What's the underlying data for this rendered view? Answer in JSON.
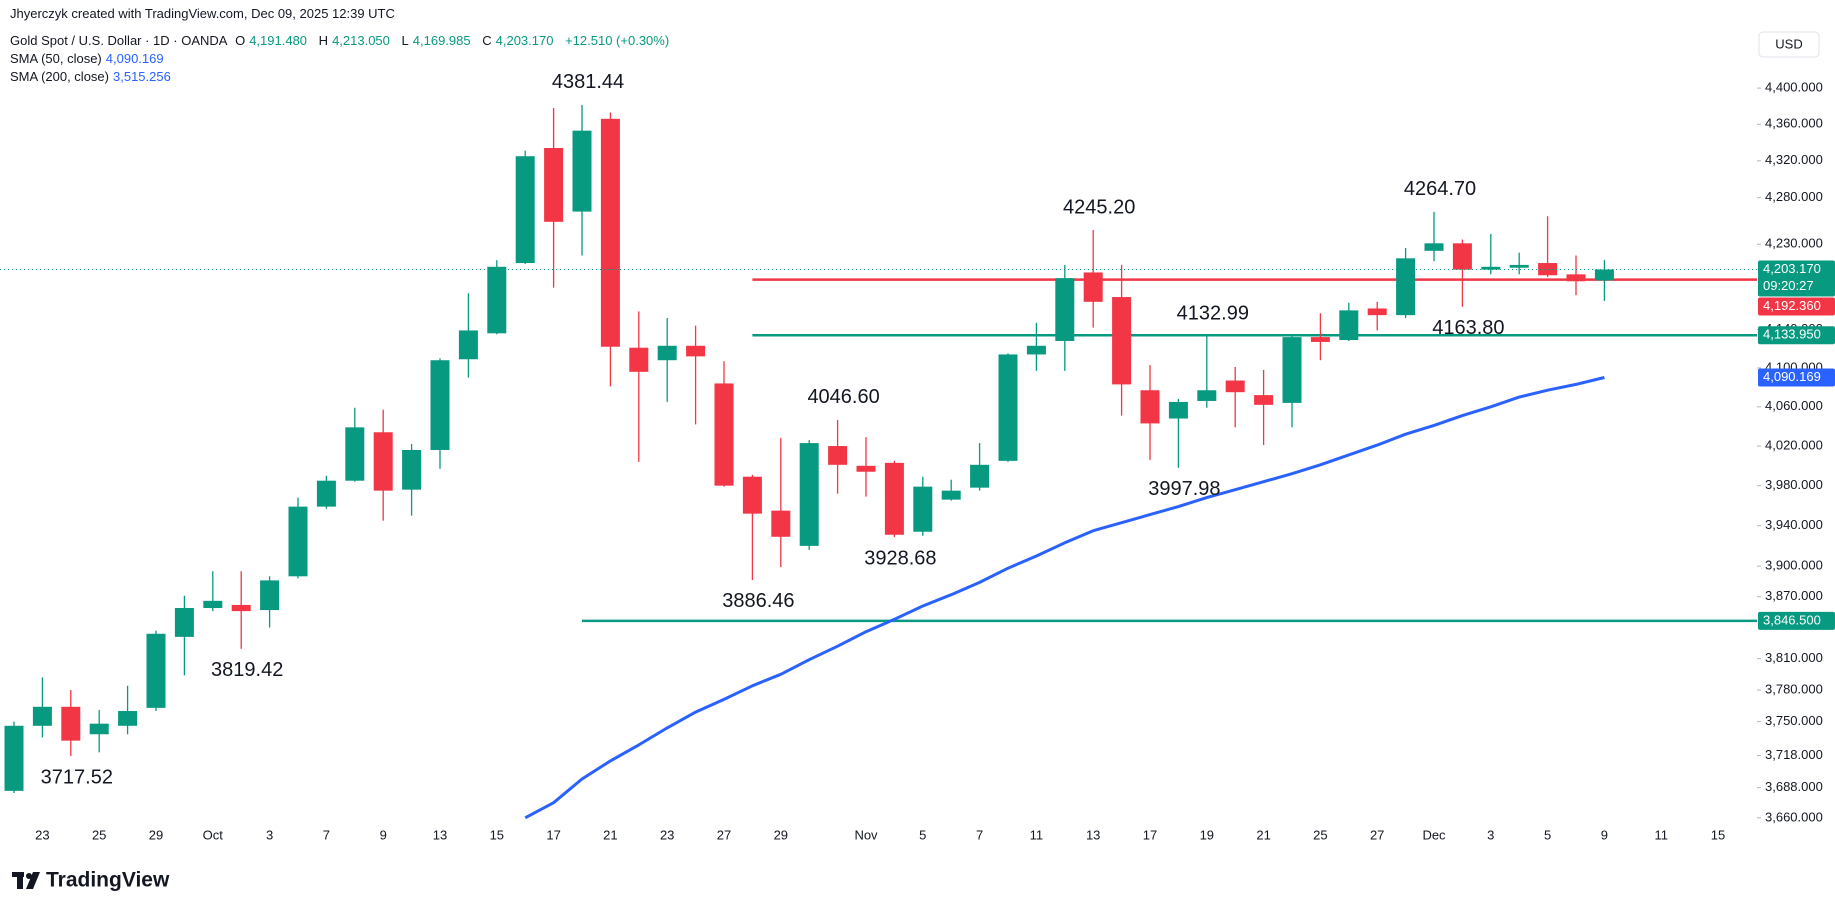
{
  "header": {
    "credit": "Jhyerczyk created with TradingView.com, Dec 09, 2025 12:39 UTC",
    "symbol": "Gold Spot / U.S. Dollar · 1D · OANDA",
    "ohlc": [
      {
        "key": "O",
        "value": "4,191.480"
      },
      {
        "key": "H",
        "value": "4,213.050"
      },
      {
        "key": "L",
        "value": "4,169.985"
      },
      {
        "key": "C",
        "value": "4,203.170"
      }
    ],
    "change": "+12.510 (+0.30%)",
    "indicators": [
      {
        "name": "SMA (50, close)",
        "value": "4,090.169"
      },
      {
        "name": "SMA (200, close)",
        "value": "3,515.256"
      }
    ]
  },
  "currency": "USD",
  "brand": "TradingView",
  "chart_data": {
    "type": "candlestick",
    "categories": [
      null,
      "23",
      null,
      "25",
      null,
      "29",
      null,
      "Oct",
      null,
      "3",
      null,
      "7",
      null,
      "9",
      null,
      "13",
      null,
      "15",
      null,
      "17",
      null,
      "21",
      null,
      "23",
      null,
      "27",
      null,
      "29",
      null,
      null,
      "Nov",
      null,
      "5",
      null,
      "7",
      null,
      "11",
      null,
      "13",
      null,
      "17",
      null,
      "19",
      null,
      "21",
      null,
      "25",
      null,
      "27",
      null,
      "Dec",
      null,
      "3",
      null,
      "5",
      null,
      "9",
      null,
      "11",
      null,
      "15"
    ],
    "open": [
      3685,
      3746,
      3764,
      3738,
      3746,
      3763,
      3831,
      3859,
      3862,
      3857,
      3890,
      3959,
      3985,
      4034,
      3976,
      4016,
      4109,
      4136,
      4210,
      4334,
      4265,
      4366,
      4121,
      4108,
      4123,
      4084,
      3989,
      3955,
      3920,
      4020,
      4000,
      4003,
      3934,
      3966,
      3978,
      4005,
      4114,
      4128,
      4200,
      4174,
      4077,
      4048,
      4066,
      4087,
      4072,
      4064,
      4132,
      4129,
      4162,
      4155,
      4223,
      4231,
      4203,
      4205,
      4210,
      4198,
      4191.48,
      null,
      null,
      null,
      null
    ],
    "high": [
      3750,
      3792,
      3780,
      3761,
      3784,
      3837,
      3871,
      3895,
      3895,
      3890,
      3968,
      3990,
      4059,
      4057,
      4022,
      4110,
      4178,
      4213,
      4331,
      4378,
      4381.44,
      4373,
      4159,
      4152,
      4144,
      4107,
      3991,
      4028,
      4026,
      4046.6,
      4029,
      4005,
      3989,
      3986,
      4023,
      4115,
      4147,
      4208,
      4245.2,
      4208,
      4103,
      4068,
      4132.99,
      4101,
      4098,
      4135,
      4157,
      4168,
      4169,
      4226,
      4264.7,
      4235,
      4241,
      4221,
      4260,
      4218,
      4213.05,
      null,
      null,
      null,
      null
    ],
    "low": [
      3683,
      3735,
      3717.52,
      3721,
      3738,
      3760,
      3794,
      3856,
      3819.42,
      3840,
      3888,
      3957,
      3984,
      3945,
      3950,
      3997,
      4090,
      4135,
      4209,
      4184,
      4218,
      4081,
      4004,
      4065,
      4042,
      3979,
      3886.46,
      3899,
      3916,
      3972,
      3969,
      3928.68,
      3930,
      3965,
      3975,
      4004,
      4097,
      4097,
      4142,
      4051,
      4006,
      3997.98,
      4059,
      4039,
      4021,
      4039,
      4108,
      4128,
      4139,
      4152,
      4212,
      4163.8,
      4198,
      4198,
      4195,
      4176,
      4169.985,
      null,
      null,
      null,
      null
    ],
    "close": [
      3746,
      3764,
      3732,
      3748,
      3760,
      3834,
      3859,
      3866,
      3856,
      3886,
      3959,
      3985,
      4039,
      3975,
      4016,
      4108,
      4139,
      4206,
      4325,
      4254,
      4353,
      4122,
      4096,
      4123,
      4112,
      3980,
      3952,
      3929,
      4023,
      4001,
      3994,
      3931,
      3979,
      3975,
      4001,
      4114,
      4123,
      4194,
      4169,
      4083,
      4043,
      4065,
      4077,
      4075,
      4062,
      4132,
      4127,
      4160,
      4155,
      4215,
      4231,
      4203,
      4206,
      4208,
      4197,
      4190.66,
      4203.17,
      null,
      null,
      null,
      null
    ],
    "up_color": "#089981",
    "down_color": "#f23645",
    "log_scale": true,
    "ylim": [
      3658,
      4474
    ],
    "yticks": [
      {
        "value": 4400,
        "label": "4,400.000"
      },
      {
        "value": 4360,
        "label": "4,360.000"
      },
      {
        "value": 4320,
        "label": "4,320.000"
      },
      {
        "value": 4280,
        "label": "4,280.000"
      },
      {
        "value": 4230,
        "label": "4,230.000"
      },
      {
        "value": 4140,
        "label": "4,140.000"
      },
      {
        "value": 4100,
        "label": "4,100.000"
      },
      {
        "value": 4060,
        "label": "4,060.000"
      },
      {
        "value": 4020,
        "label": "4,020.000"
      },
      {
        "value": 3980,
        "label": "3,980.000"
      },
      {
        "value": 3940,
        "label": "3,940.000"
      },
      {
        "value": 3900,
        "label": "3,900.000"
      },
      {
        "value": 3870,
        "label": "3,870.000"
      },
      {
        "value": 3810,
        "label": "3,810.000"
      },
      {
        "value": 3780,
        "label": "3,780.000"
      },
      {
        "value": 3750,
        "label": "3,750.000"
      },
      {
        "value": 3718,
        "label": "3,718.000"
      },
      {
        "value": 3688,
        "label": "3,688.000"
      },
      {
        "value": 3660,
        "label": "3,660.000"
      }
    ],
    "grid": false,
    "sma": {
      "name": "SMA (50, close)",
      "color": "#2962ff",
      "values": [
        null,
        null,
        null,
        null,
        null,
        null,
        null,
        null,
        null,
        null,
        null,
        null,
        null,
        null,
        null,
        null,
        null,
        null,
        3660,
        3674,
        3696,
        3713,
        3728,
        3744,
        3759,
        3771,
        3784,
        3795,
        3809,
        3822,
        3836,
        3848,
        3861,
        3872,
        3884,
        3898,
        3910,
        3923,
        3935,
        3943,
        3951,
        3959,
        3968,
        3976,
        3984,
        3992,
        4001,
        4011,
        4021,
        4032,
        4041,
        4051,
        4060,
        4070,
        4077,
        4083,
        4090.169,
        null,
        null,
        null,
        null
      ]
    },
    "hlines": [
      {
        "value": 4192.36,
        "label": "4,192.360",
        "color": "#f23645"
      },
      {
        "value": 4133.95,
        "label": "4,133.950",
        "color": "#089981"
      },
      {
        "value": 3846.5,
        "label": "3,846.500",
        "color": "#089981"
      }
    ],
    "countdown": "09:20:27",
    "annotations": [
      {
        "text": "4381.44",
        "value": 4381.44
      },
      {
        "text": "3717.52",
        "value": 3717.52
      },
      {
        "text": "3819.42",
        "value": 3819.42
      },
      {
        "text": "4046.60",
        "value": 4046.6
      },
      {
        "text": "3886.46",
        "value": 3886.46
      },
      {
        "text": "3928.68",
        "value": 3928.68
      },
      {
        "text": "4245.20",
        "value": 4245.2
      },
      {
        "text": "3997.98",
        "value": 3997.98
      },
      {
        "text": "4132.99",
        "value": 4132.99
      },
      {
        "text": "4264.70",
        "value": 4264.7
      },
      {
        "text": "4163.80",
        "value": 4163.8
      }
    ]
  }
}
